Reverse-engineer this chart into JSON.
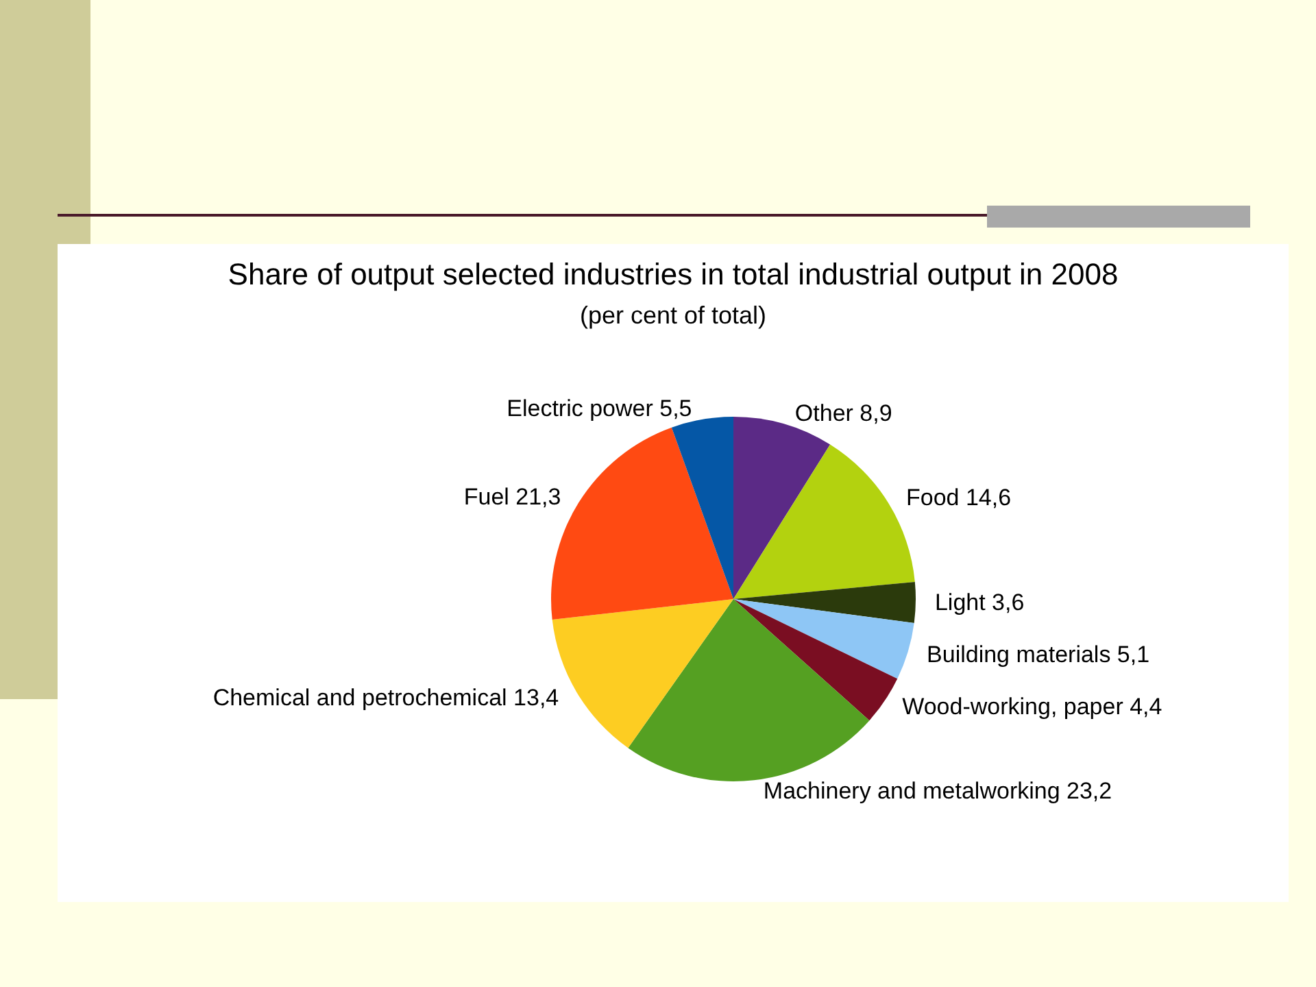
{
  "chart_data": {
    "type": "pie",
    "title": "Share of output selected industries in total industrial output in 2008",
    "subtitle": "(per cent of total)",
    "categories": [
      "Other",
      "Food",
      "Light",
      "Building materials",
      "Wood-working, paper",
      "Machinery and metalworking",
      "Chemical and petrochemical",
      "Fuel",
      "Electric power"
    ],
    "values": [
      8.9,
      14.6,
      3.6,
      5.1,
      4.4,
      23.2,
      13.4,
      21.3,
      5.5
    ],
    "value_labels": [
      "8,9",
      "14,6",
      "3,6",
      "5,1",
      "4,4",
      "23,2",
      "13,4",
      "21,3",
      "5,5"
    ],
    "colors": [
      "#5b2a86",
      "#b3d20f",
      "#2b3a0c",
      "#8ec6f5",
      "#7a0e22",
      "#55a022",
      "#fdcd22",
      "#ff4a12",
      "#0557a6"
    ],
    "legend": false
  }
}
